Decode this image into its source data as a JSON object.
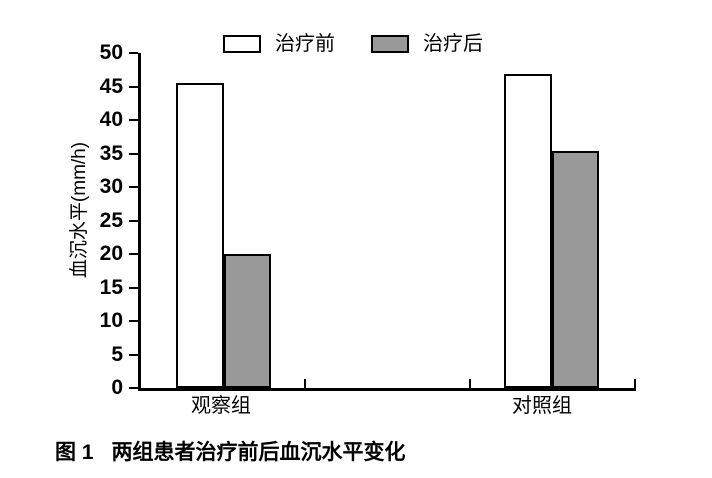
{
  "figure": {
    "caption": {
      "label": "图 1",
      "text": "两组患者治疗前后血沉水平变化"
    }
  },
  "chart_data": {
    "type": "bar",
    "title": "",
    "categories": [
      "观察组",
      "对照组"
    ],
    "series": [
      {
        "name": "治疗前",
        "fill": "#ffffff",
        "values": [
          45.5,
          46.8
        ]
      },
      {
        "name": "治疗后",
        "fill": "#999999",
        "values": [
          20.0,
          35.4
        ]
      }
    ],
    "ylabel": "血沉水平(mm/h)",
    "ylim": [
      0,
      50
    ],
    "ytick_step": 5,
    "yticks": [
      0,
      5,
      10,
      15,
      20,
      25,
      30,
      35,
      40,
      45,
      50
    ],
    "grid": false,
    "legend_position": "top",
    "bar_border_color": "#000000",
    "axis_color": "#000000"
  }
}
